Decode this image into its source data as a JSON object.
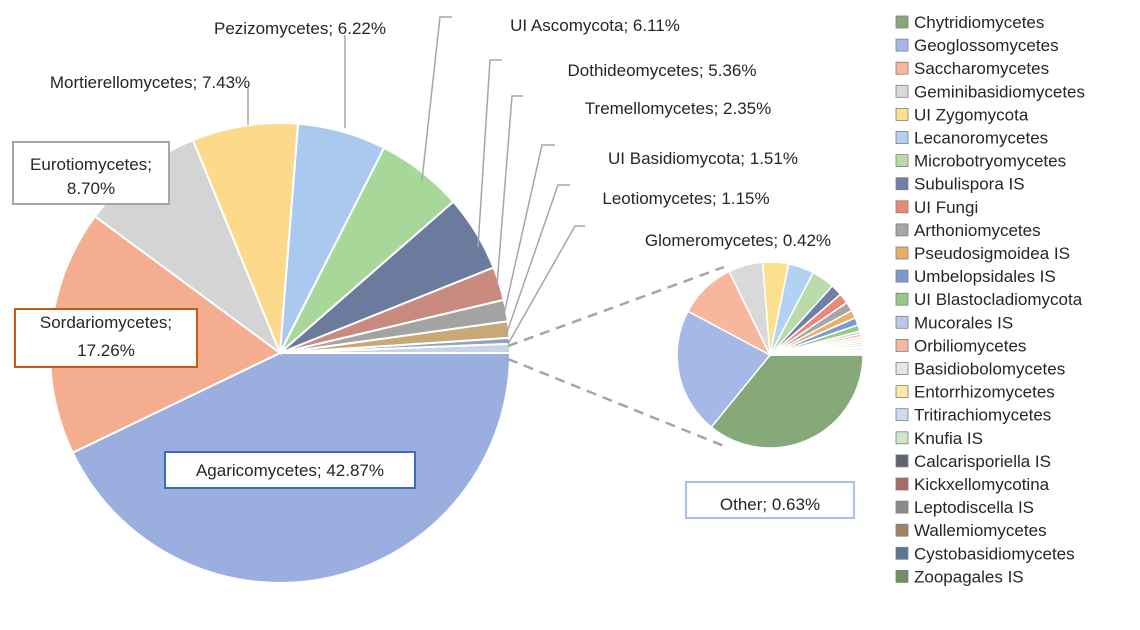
{
  "chart_data": [
    {
      "type": "pie",
      "title": "",
      "unit": "%",
      "slices": [
        {
          "label": "Agaricomycetes",
          "value": 42.87,
          "color": "#9aaee0",
          "callout": "Agaricomycetes; 42.87%"
        },
        {
          "label": "Sordariomycetes",
          "value": 17.26,
          "color": "#f5ad8f",
          "callout": "Sordariomycetes;\n17.26%"
        },
        {
          "label": "Eurotiomycetes",
          "value": 8.7,
          "color": "#d4d4d4",
          "callout": "Eurotiomycetes;\n8.70%"
        },
        {
          "label": "Mortierellomycetes",
          "value": 7.43,
          "color": "#fdd98c",
          "callout": "Mortierellomycetes; 7.43%"
        },
        {
          "label": "Pezizomycetes",
          "value": 6.22,
          "color": "#a9c9ef",
          "callout": "Pezizomycetes; 6.22%"
        },
        {
          "label": "UI Ascomycota",
          "value": 6.11,
          "color": "#a8d79a",
          "callout": "UI Ascomycota; 6.11%"
        },
        {
          "label": "Dothideomycetes",
          "value": 5.36,
          "color": "#6b7b9e",
          "callout": "Dothideomycetes; 5.36%"
        },
        {
          "label": "Tremellomycetes",
          "value": 2.35,
          "color": "#c98a80",
          "callout": "Tremellomycetes; 2.35%"
        },
        {
          "label": "UI Basidiomycota",
          "value": 1.51,
          "color": "#a3a3a3",
          "callout": "UI Basidiomycota; 1.51%"
        },
        {
          "label": "Leotiomycetes",
          "value": 1.15,
          "color": "#c9a878",
          "callout": "Leotiomycetes; 1.15%"
        },
        {
          "label": "Glomeromycetes",
          "value": 0.42,
          "color": "#8ea3c8",
          "callout": "Glomeromycetes; 0.42%"
        },
        {
          "label": "Other",
          "value": 0.63,
          "color": "#c8d4e8",
          "callout": "Other; 0.63%"
        }
      ]
    },
    {
      "type": "pie",
      "title": "",
      "slices": [
        {
          "label": "Chytridiomycetes",
          "value": 36.0,
          "color": "#87a97a"
        },
        {
          "label": "Geoglossomycetes",
          "value": 22.0,
          "color": "#a6b8e6"
        },
        {
          "label": "Saccharomycetes",
          "value": 10.0,
          "color": "#f7b79d"
        },
        {
          "label": "Geminibasidiomycetes",
          "value": 6.0,
          "color": "#d9d9d9"
        },
        {
          "label": "UI Zygomycota",
          "value": 4.5,
          "color": "#fde08f"
        },
        {
          "label": "Lecanoromycetes",
          "value": 4.5,
          "color": "#b3d1f2"
        },
        {
          "label": "Microbotryomycetes",
          "value": 4.0,
          "color": "#b7dca9"
        },
        {
          "label": "Subulispora IS",
          "value": 2.0,
          "color": "#6f7fa8"
        },
        {
          "label": "UI Fungi",
          "value": 1.8,
          "color": "#e98a78"
        },
        {
          "label": "Arthoniomycetes",
          "value": 1.6,
          "color": "#a6a6a6"
        },
        {
          "label": "Pseudosigmoidea IS",
          "value": 1.4,
          "color": "#e6b06a"
        },
        {
          "label": "Umbelopsidales IS",
          "value": 1.3,
          "color": "#7f97d0"
        },
        {
          "label": "UI Blastocladiomycota",
          "value": 1.1,
          "color": "#99c98a"
        },
        {
          "label": "Mucorales IS",
          "value": 0.5,
          "color": "#b9c8e8"
        },
        {
          "label": "Orbiliomycetes",
          "value": 0.5,
          "color": "#f4b89e"
        },
        {
          "label": "Basidiobolomycetes",
          "value": 0.5,
          "color": "#e6e6e6"
        },
        {
          "label": "Entorrhizomycetes",
          "value": 0.4,
          "color": "#fde6a8"
        },
        {
          "label": "Tritirachiomycetes",
          "value": 0.4,
          "color": "#c9dcf2"
        },
        {
          "label": "Knufia IS",
          "value": 0.4,
          "color": "#cfe6c4"
        },
        {
          "label": "Calcarisporiella IS",
          "value": 0.3,
          "color": "#5e6470"
        },
        {
          "label": "Kickxellomycotina",
          "value": 0.3,
          "color": "#a66d66"
        },
        {
          "label": "Leptodiscella IS",
          "value": 0.25,
          "color": "#8a8a8a"
        },
        {
          "label": "Wallemiomycetes",
          "value": 0.2,
          "color": "#a08465"
        },
        {
          "label": "Cystobasidiomycetes",
          "value": 0.2,
          "color": "#5d7494"
        },
        {
          "label": "Zoopagales IS",
          "value": 0.2,
          "color": "#6f8f66"
        }
      ],
      "legend": "right"
    }
  ]
}
